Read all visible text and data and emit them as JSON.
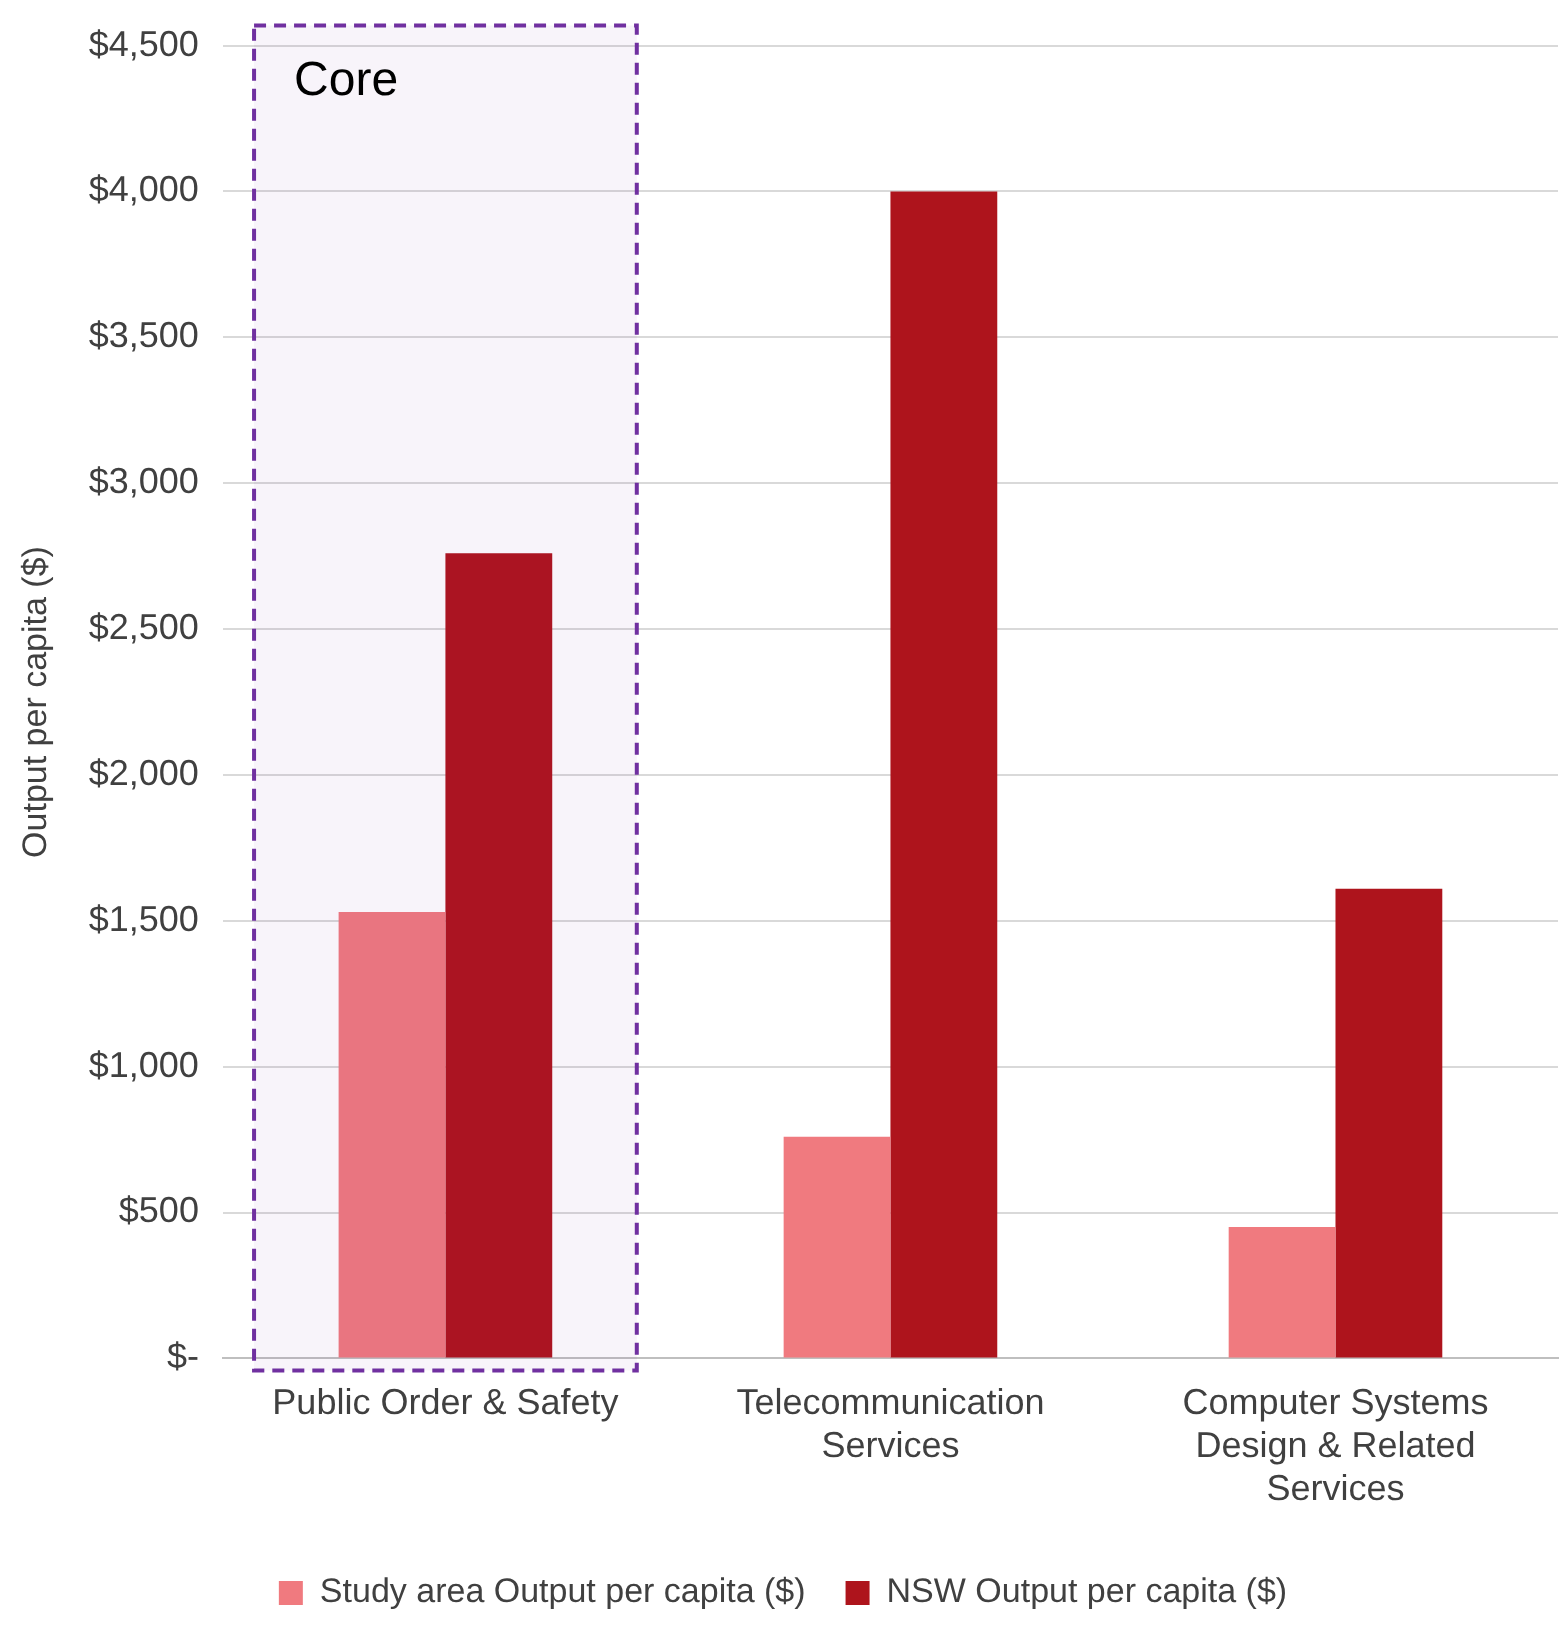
{
  "chart_data": {
    "type": "bar",
    "ylabel": "Output per capita ($)",
    "categories": [
      "Public Order & Safety",
      "Telecommunication Services",
      "Computer Systems Design & Related Services"
    ],
    "series": [
      {
        "name": "Study area Output per capita ($)",
        "color": "#f07a7f",
        "values": [
          1530,
          760,
          450
        ]
      },
      {
        "name": "NSW Output per capita ($)",
        "color": "#ae141c",
        "values": [
          2760,
          4000,
          1610
        ]
      }
    ],
    "ylim": [
      0,
      4500
    ],
    "yticks": [
      {
        "value": 0,
        "label": "$-"
      },
      {
        "value": 500,
        "label": "$500"
      },
      {
        "value": 1000,
        "label": "$1,000"
      },
      {
        "value": 1500,
        "label": "$1,500"
      },
      {
        "value": 2000,
        "label": "$2,000"
      },
      {
        "value": 2500,
        "label": "$2,500"
      },
      {
        "value": 3000,
        "label": "$3,000"
      },
      {
        "value": 3500,
        "label": "$3,500"
      },
      {
        "value": 4000,
        "label": "$4,000"
      },
      {
        "value": 4500,
        "label": "$4,500"
      }
    ],
    "bands": [
      {
        "axis": "x",
        "from": "Public Order & Safety",
        "to": "Public Order & Safety",
        "label": "Core",
        "color": "#7030a0"
      }
    ],
    "grid": "y",
    "legend": "bottom"
  }
}
